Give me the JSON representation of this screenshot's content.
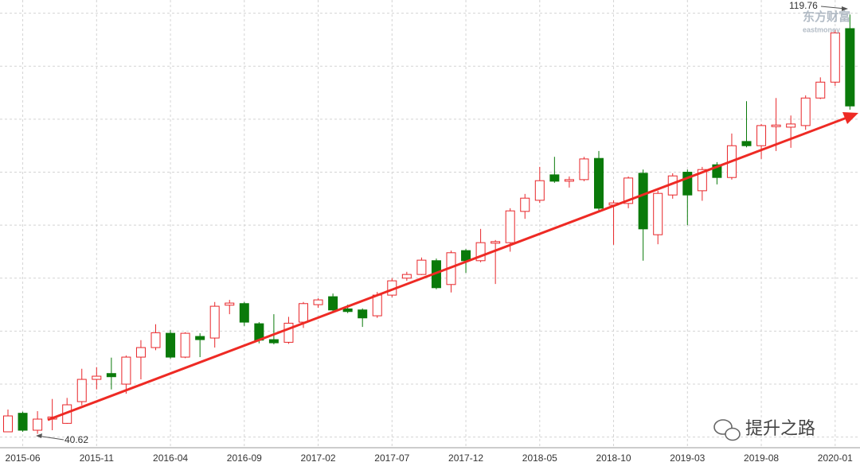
{
  "chart_data": {
    "type": "candlestick",
    "categories": [
      null,
      "2015-06",
      null,
      null,
      null,
      null,
      "2015-11",
      null,
      null,
      null,
      null,
      "2016-04",
      null,
      null,
      null,
      null,
      "2016-09",
      null,
      null,
      null,
      null,
      "2017-02",
      null,
      null,
      null,
      null,
      "2017-07",
      null,
      null,
      null,
      null,
      "2017-12",
      null,
      null,
      null,
      null,
      "2018-05",
      null,
      null,
      null,
      null,
      "2018-10",
      null,
      null,
      null,
      null,
      "2019-03",
      null,
      null,
      null,
      null,
      "2019-08",
      null,
      null,
      null,
      null,
      "2020-01",
      null
    ],
    "open": [
      41.0,
      44.5,
      41.3,
      43.4,
      42.6,
      46.7,
      50.9,
      52.0,
      50.0,
      55.1,
      56.9,
      59.6,
      55.1,
      59.0,
      58.7,
      64.9,
      65.2,
      61.4,
      58.4,
      57.9,
      61.7,
      65.0,
      66.5,
      64.2,
      64.0,
      62.9,
      66.8,
      70.0,
      70.7,
      73.3,
      68.8,
      75.2,
      73.3,
      76.6,
      76.7,
      82.6,
      84.7,
      89.5,
      88.3,
      88.6,
      92.6,
      83.8,
      84.1,
      89.8,
      78.2,
      85.7,
      90.0,
      86.5,
      91.4,
      89.0,
      95.8,
      95.0,
      98.6,
      98.5,
      98.8,
      104.0,
      107.0,
      117.1
    ],
    "high": [
      45.2,
      44.8,
      44.9,
      47.2,
      47.4,
      52.9,
      53.2,
      55.0,
      55.4,
      58.3,
      61.3,
      60.2,
      59.8,
      59.6,
      65.5,
      65.9,
      65.5,
      61.7,
      63.2,
      62.7,
      65.5,
      66.2,
      67.1,
      65.0,
      64.3,
      67.4,
      70.0,
      71.2,
      73.9,
      73.7,
      75.2,
      75.5,
      79.3,
      77.2,
      83.2,
      85.9,
      91.0,
      92.9,
      89.2,
      92.9,
      94.0,
      84.7,
      89.2,
      90.5,
      86.5,
      89.8,
      90.5,
      91.0,
      91.9,
      97.3,
      103.4,
      99.1,
      104.0,
      100.7,
      104.5,
      107.9,
      116.8,
      119.76
    ],
    "low": [
      41.0,
      41.0,
      40.62,
      41.3,
      42.5,
      46.0,
      49.0,
      49.0,
      48.2,
      50.9,
      56.4,
      54.8,
      54.9,
      55.1,
      56.9,
      63.2,
      61.0,
      57.7,
      57.5,
      57.6,
      60.6,
      64.4,
      63.6,
      63.4,
      60.8,
      62.5,
      66.4,
      69.5,
      70.6,
      67.9,
      67.3,
      71.0,
      73.0,
      68.9,
      75.0,
      81.2,
      84.2,
      88.0,
      87.1,
      88.3,
      82.7,
      76.3,
      83.2,
      73.3,
      76.4,
      85.0,
      80.0,
      84.6,
      87.7,
      88.6,
      94.7,
      92.5,
      94.0,
      94.6,
      98.0,
      103.8,
      106.3,
      101.8
    ],
    "close": [
      44.0,
      41.3,
      43.4,
      43.8,
      46.1,
      50.9,
      51.5,
      51.4,
      55.1,
      56.9,
      59.7,
      55.1,
      59.6,
      58.4,
      64.7,
      65.3,
      61.7,
      58.3,
      57.8,
      61.5,
      65.2,
      65.9,
      64.0,
      63.7,
      62.5,
      66.8,
      69.5,
      70.7,
      73.4,
      68.2,
      74.8,
      73.3,
      76.7,
      76.9,
      82.7,
      85.1,
      88.4,
      88.3,
      88.6,
      92.5,
      83.2,
      84.2,
      88.9,
      79.3,
      86.0,
      89.3,
      85.7,
      90.5,
      89.0,
      95.0,
      95.0,
      98.8,
      98.9,
      99.1,
      104.0,
      107.0,
      116.3,
      102.5
    ],
    "up_color": "#e8262a",
    "down_color": "#0a7a0a",
    "ylim": [
      38,
      122.5
    ],
    "y_grid": [
      40,
      50,
      60,
      70,
      80,
      90,
      100,
      110,
      120
    ],
    "grid": true,
    "high_label": "119.76",
    "low_label": "40.62",
    "watermark": {
      "brand": "东方财富",
      "brand_en": "eastmoney",
      "channel": "提升之路"
    }
  }
}
